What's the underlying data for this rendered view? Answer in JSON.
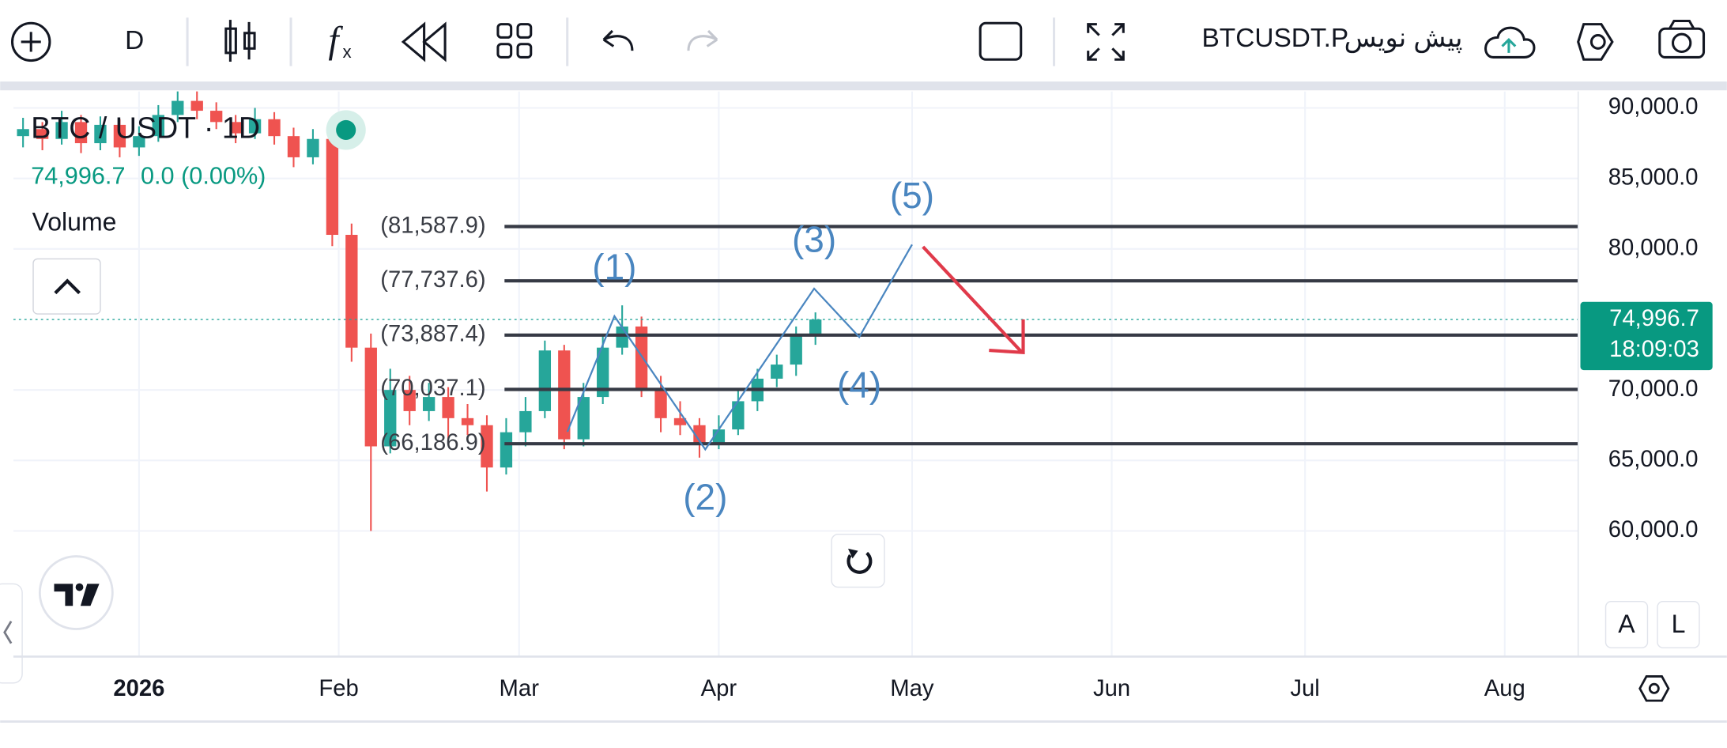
{
  "toolbar": {
    "interval": "D",
    "layout_name": "پیش نویس",
    "symbol": "BTCUSDT.P"
  },
  "legend": {
    "symbol": "BTC / USDT · 1D",
    "price": "74,996.7",
    "change": "0.0 (0.00%)",
    "volume": "Volume"
  },
  "countdown": "18:09:03",
  "scale_buttons": [
    "A",
    "L"
  ],
  "chart_data": {
    "type": "candlestick",
    "grid": true,
    "up_color": "#26a69a",
    "down_color": "#ef5350",
    "ylim": [
      51170,
      91170
    ],
    "yticks": [
      {
        "value": 60000,
        "label": "60,000.0"
      },
      {
        "value": 65000,
        "label": "65,000.0"
      },
      {
        "value": 70000,
        "label": "70,000.0"
      },
      {
        "value": 80000,
        "label": "80,000.0"
      },
      {
        "value": 85000,
        "label": "85,000.0"
      },
      {
        "value": 90000,
        "label": "90,000.0"
      }
    ],
    "xlim": [
      -19.5,
      223.4
    ],
    "xticks": [
      {
        "value": 0,
        "label": "2026"
      },
      {
        "value": 31,
        "label": "Feb"
      },
      {
        "value": 59,
        "label": "Mar"
      },
      {
        "value": 90,
        "label": "Apr"
      },
      {
        "value": 120,
        "label": "May"
      },
      {
        "value": 151,
        "label": "Jun"
      },
      {
        "value": 181,
        "label": "Jul"
      },
      {
        "value": 212,
        "label": "Aug"
      }
    ],
    "candles": {
      "x": [
        -18,
        -15,
        -12,
        -9,
        -6,
        -3,
        0,
        3,
        6,
        9,
        12,
        15,
        18,
        21,
        24,
        27,
        30,
        33,
        36,
        39,
        42,
        45,
        48,
        51,
        54,
        57,
        60,
        63,
        66,
        69,
        72,
        75,
        78,
        81,
        84,
        87,
        90,
        93,
        96,
        99,
        102,
        105
      ],
      "open": [
        88000,
        88500,
        87800,
        89000,
        87500,
        88800,
        87200,
        88000,
        89500,
        90500,
        89800,
        89000,
        88200,
        89200,
        88000,
        86500,
        87800,
        81000,
        73000,
        66000,
        70000,
        68500,
        69500,
        68000,
        67500,
        64500,
        67000,
        68500,
        72800,
        66500,
        69500,
        73000,
        74500,
        70000,
        68000,
        67500,
        66200,
        67200,
        69200,
        70800,
        71800,
        73800
      ],
      "high": [
        89300,
        89000,
        89800,
        89500,
        89400,
        89200,
        88700,
        90200,
        91500,
        91200,
        90400,
        89500,
        90000,
        89700,
        88600,
        88500,
        88200,
        81800,
        74000,
        71500,
        71000,
        70500,
        70200,
        69000,
        68200,
        68000,
        69500,
        73500,
        73200,
        70500,
        73800,
        76000,
        75200,
        71000,
        69200,
        68000,
        68200,
        70000,
        71500,
        72500,
        74500,
        75500
      ],
      "low": [
        87200,
        87000,
        87400,
        86800,
        87000,
        86500,
        86600,
        87600,
        89000,
        89200,
        88500,
        87500,
        87800,
        87400,
        85800,
        86000,
        80200,
        72000,
        60000,
        65500,
        67500,
        67800,
        66500,
        66800,
        62800,
        64000,
        66000,
        68000,
        65800,
        66000,
        69000,
        72500,
        69500,
        67000,
        66800,
        65200,
        65800,
        66800,
        68500,
        70200,
        71000,
        73200
      ],
      "close": [
        88500,
        87800,
        89000,
        87500,
        88800,
        87200,
        88000,
        89500,
        90500,
        89800,
        89000,
        88200,
        89200,
        88000,
        86500,
        87800,
        81000,
        73000,
        66000,
        70000,
        68500,
        69500,
        68000,
        67500,
        64500,
        67000,
        68500,
        72800,
        66500,
        69500,
        73000,
        74500,
        70000,
        68000,
        67500,
        66200,
        67200,
        69200,
        70800,
        71800,
        73800,
        74996.7
      ]
    },
    "last_price": {
      "value": 74996.7,
      "label": "74,996.7"
    },
    "levels": [
      {
        "value": 81587.9,
        "label": "(81,587.9)"
      },
      {
        "value": 77737.6,
        "label": "(77,737.6)"
      },
      {
        "value": 73887.4,
        "label": "(73,887.4)"
      },
      {
        "value": 70037.1,
        "label": "(70,037.1)"
      },
      {
        "value": 66186.9,
        "label": "(66,186.9)"
      }
    ],
    "wave": {
      "color": "#4a86c0",
      "x": [
        66.5,
        73.8,
        87.9,
        104.8,
        111.8,
        120
      ],
      "values": [
        67030,
        75234,
        65781,
        77187,
        73750,
        80312
      ],
      "labels": [
        null,
        "(1)",
        "(2)",
        "(3)",
        "(4)",
        "(5)"
      ]
    }
  }
}
